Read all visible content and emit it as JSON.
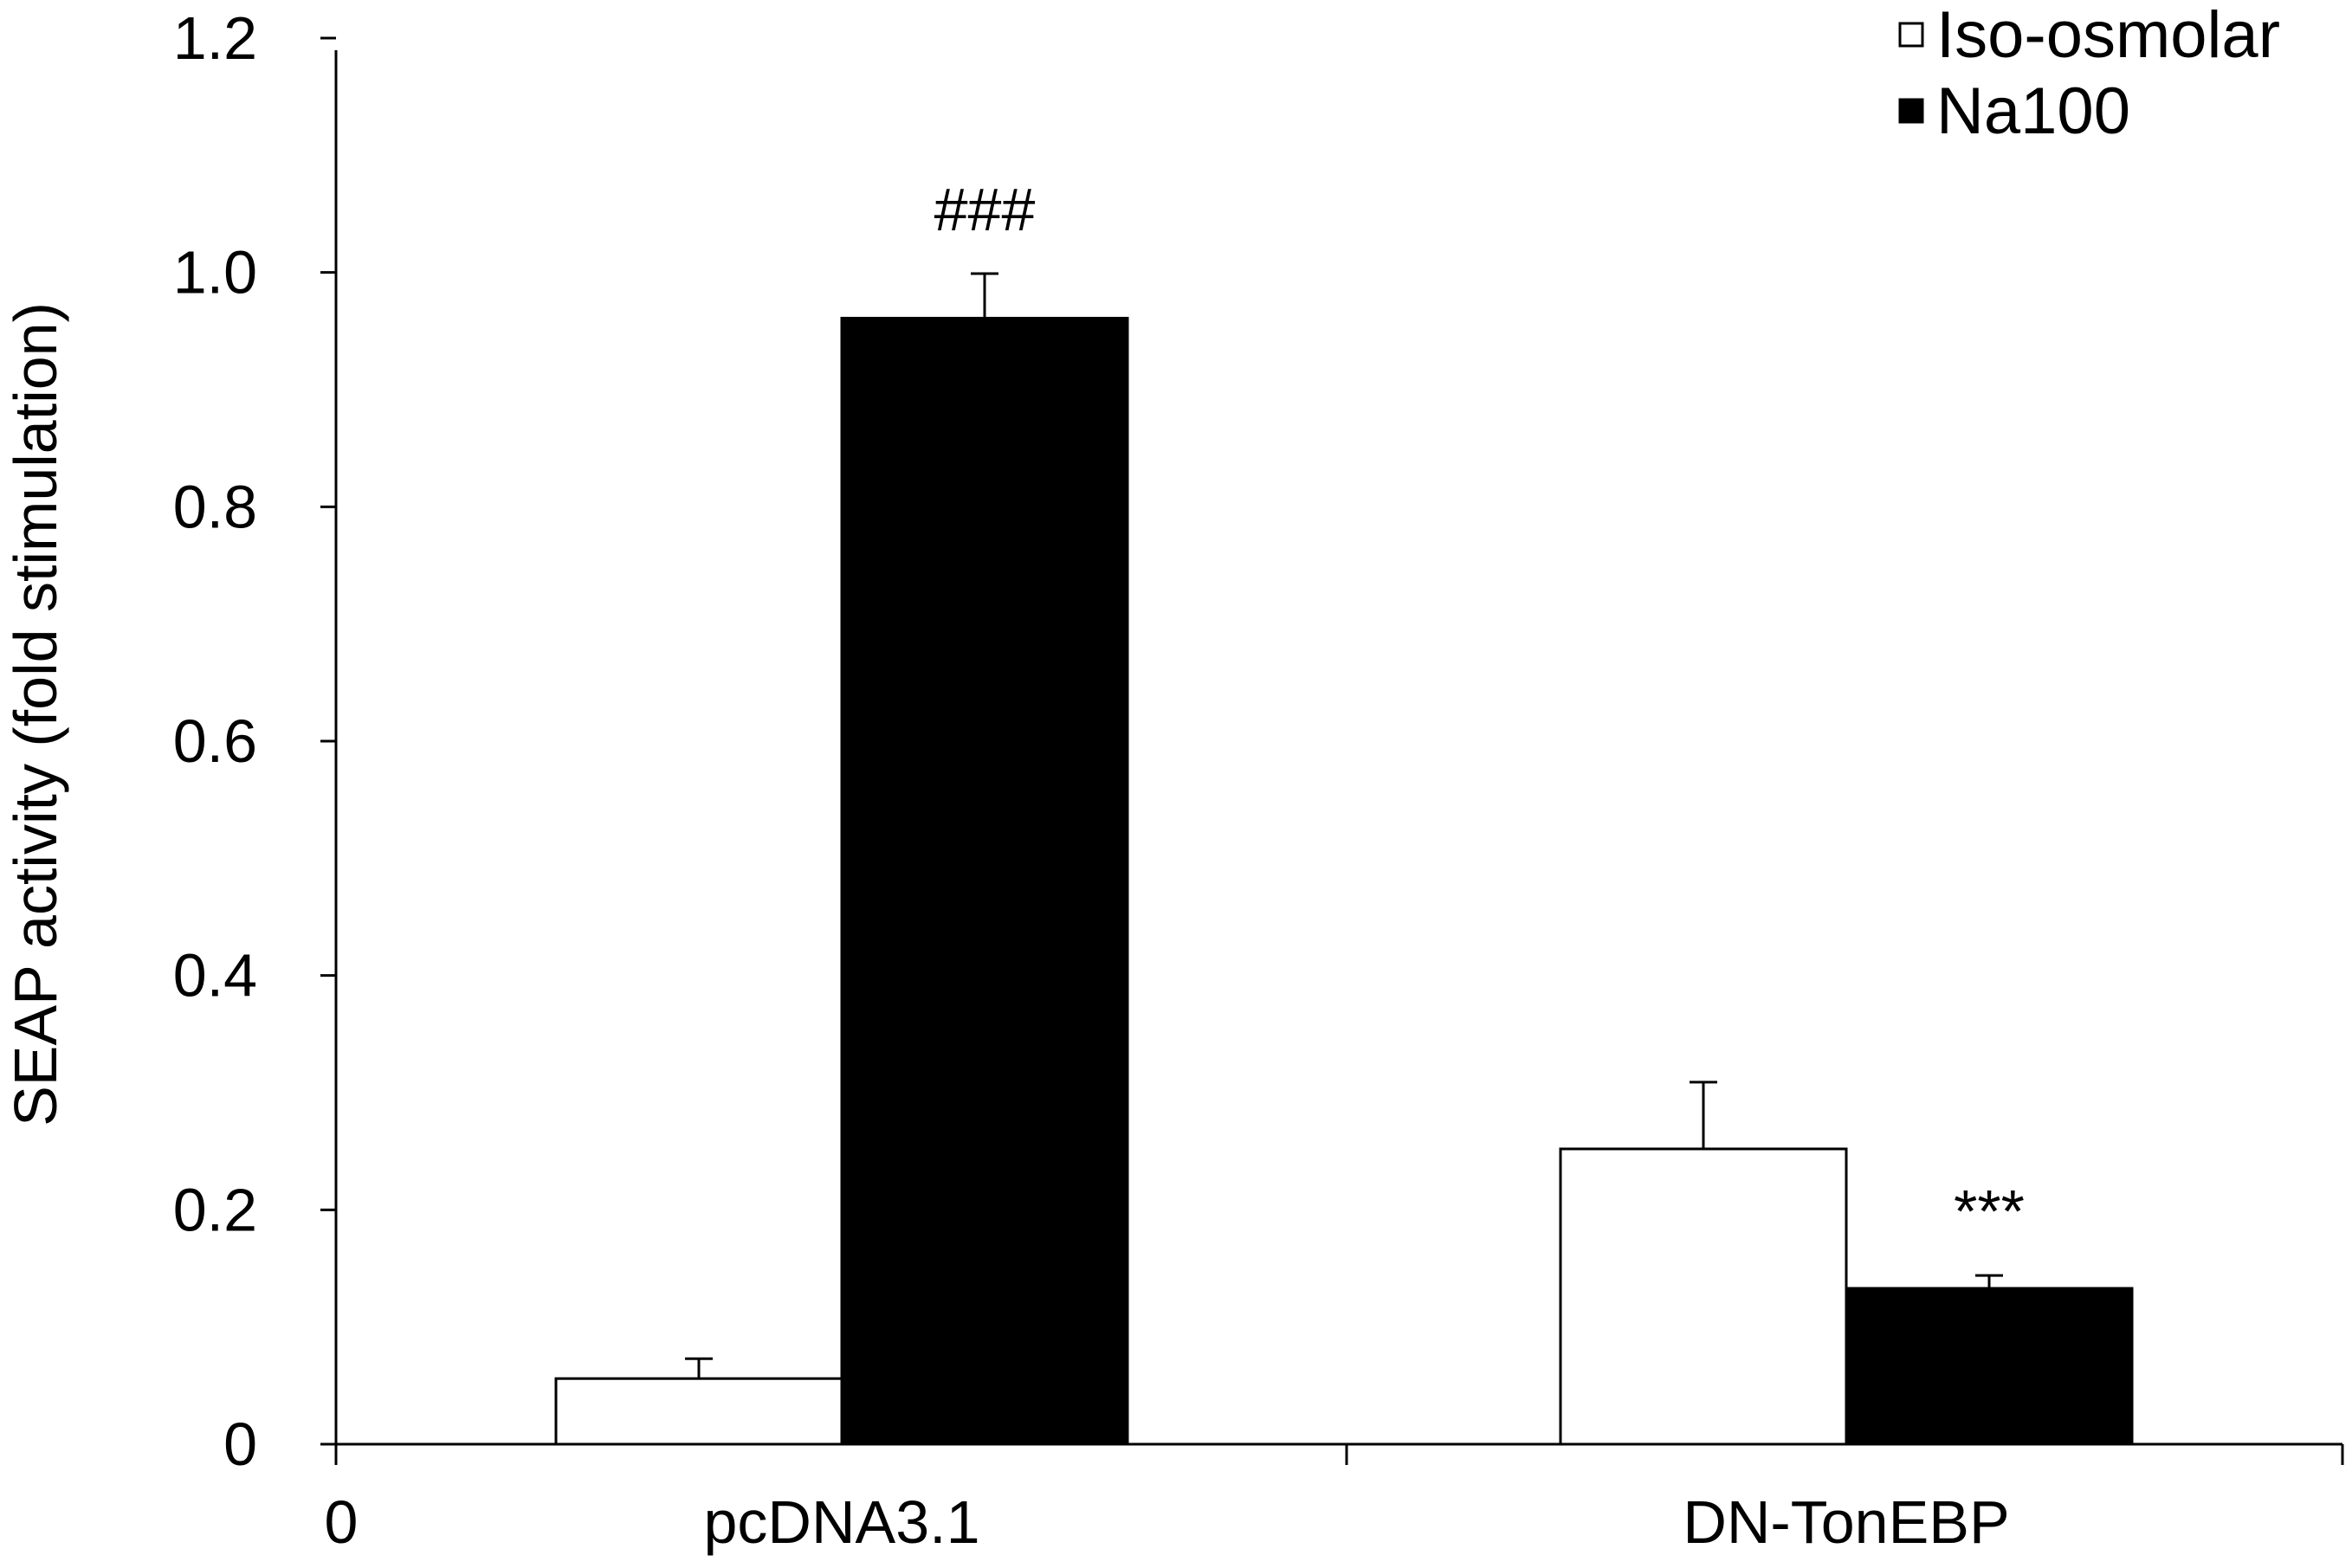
{
  "chart_data": {
    "type": "bar",
    "title": "",
    "xlabel": "",
    "ylabel": "SEAP activity (fold stimulation)",
    "ylim": [
      0,
      1.2
    ],
    "yticks": [
      "0",
      "0.2",
      "0.4",
      "0.6",
      "0.8",
      "1.0",
      "1.2"
    ],
    "x_origin_label": "0",
    "categories": [
      "pcDNA3.1",
      "DN-TonEBP"
    ],
    "series": [
      {
        "name": "Iso-osmolar",
        "color": "#ffffff",
        "values": [
          0.056,
          0.252
        ],
        "errors": [
          0.017,
          0.057
        ]
      },
      {
        "name": "Na100",
        "color": "#000000",
        "values": [
          0.961,
          0.133
        ],
        "errors": [
          0.038,
          0.011
        ]
      }
    ],
    "annotations": [
      {
        "text": "###",
        "category": 0,
        "series": 1
      },
      {
        "text": "***",
        "category": 1,
        "series": 1
      }
    ],
    "legend_position": "top-right",
    "grid": false
  }
}
